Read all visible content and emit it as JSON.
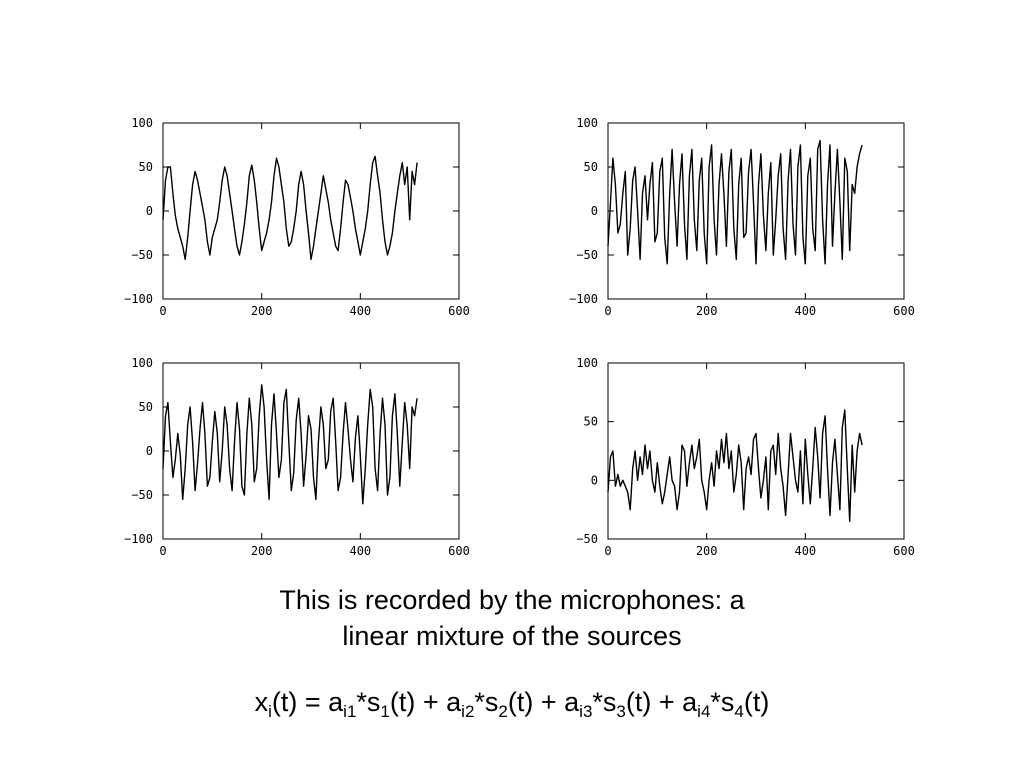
{
  "caption": {
    "line1": "This is recorded by the microphones: a",
    "line2": "linear mixture of the sources"
  },
  "equation": [
    {
      "t": "x"
    },
    {
      "s": "i"
    },
    {
      "t": "(t) = a"
    },
    {
      "s": "i1"
    },
    {
      "t": "*s"
    },
    {
      "s": "1"
    },
    {
      "t": "(t) + a"
    },
    {
      "s": "i2"
    },
    {
      "t": "*s"
    },
    {
      "s": "2"
    },
    {
      "t": "(t) + a"
    },
    {
      "s": "i3"
    },
    {
      "t": "*s"
    },
    {
      "s": "3"
    },
    {
      "t": "(t) + a"
    },
    {
      "s": "i4"
    },
    {
      "t": "*s"
    },
    {
      "s": "4"
    },
    {
      "t": "(t)"
    }
  ],
  "chart_data": [
    {
      "type": "line",
      "xlim": [
        0,
        600
      ],
      "ylim": [
        -100,
        100
      ],
      "xticks": [
        0,
        200,
        400,
        600
      ],
      "xtick_labels": [
        "0",
        "200",
        "400",
        "600"
      ],
      "yticks": [
        100,
        50,
        0,
        -50,
        -100
      ],
      "ytick_labels": [
        "100",
        "50",
        "0",
        "−50",
        "−100"
      ],
      "grid": false,
      "series": [
        {
          "x": [
            0,
            5,
            10,
            15,
            20,
            25,
            30,
            35,
            40,
            45,
            50,
            55,
            60,
            65,
            70,
            75,
            80,
            85,
            90,
            95,
            100,
            105,
            110,
            115,
            120,
            125,
            130,
            135,
            140,
            145,
            150,
            155,
            160,
            165,
            170,
            175,
            180,
            185,
            190,
            195,
            200,
            205,
            210,
            215,
            220,
            225,
            230,
            235,
            240,
            245,
            250,
            255,
            260,
            265,
            270,
            275,
            280,
            285,
            290,
            295,
            300,
            305,
            310,
            315,
            320,
            325,
            330,
            335,
            340,
            345,
            350,
            355,
            360,
            365,
            370,
            375,
            380,
            385,
            390,
            395,
            400,
            405,
            410,
            415,
            420,
            425,
            430,
            435,
            440,
            445,
            450,
            455,
            460,
            465,
            470,
            475,
            480,
            485,
            490,
            495,
            500,
            505,
            510,
            515
          ],
          "y": [
            -10,
            35,
            50,
            50,
            20,
            -5,
            -20,
            -30,
            -40,
            -55,
            -30,
            0,
            30,
            45,
            35,
            20,
            5,
            -10,
            -35,
            -50,
            -30,
            -20,
            -10,
            10,
            35,
            50,
            40,
            20,
            0,
            -20,
            -40,
            -50,
            -35,
            -15,
            10,
            40,
            52,
            35,
            10,
            -20,
            -45,
            -35,
            -25,
            -10,
            10,
            40,
            60,
            50,
            30,
            10,
            -20,
            -40,
            -35,
            -20,
            0,
            30,
            45,
            30,
            0,
            -25,
            -55,
            -40,
            -20,
            0,
            20,
            40,
            25,
            10,
            -10,
            -25,
            -40,
            -45,
            -20,
            10,
            35,
            30,
            15,
            0,
            -20,
            -35,
            -50,
            -35,
            -20,
            0,
            30,
            55,
            62,
            40,
            20,
            -10,
            -35,
            -50,
            -40,
            -25,
            0,
            20,
            40,
            55,
            30,
            50,
            -10,
            45,
            30,
            55
          ]
        }
      ]
    },
    {
      "type": "line",
      "xlim": [
        0,
        600
      ],
      "ylim": [
        -100,
        100
      ],
      "xticks": [
        0,
        200,
        400,
        600
      ],
      "xtick_labels": [
        "0",
        "200",
        "400",
        "600"
      ],
      "yticks": [
        100,
        50,
        0,
        -50,
        -100
      ],
      "ytick_labels": [
        "100",
        "50",
        "0",
        "−50",
        "−100"
      ],
      "grid": false,
      "series": [
        {
          "x": [
            0,
            5,
            10,
            15,
            20,
            25,
            30,
            35,
            40,
            45,
            50,
            55,
            60,
            65,
            70,
            75,
            80,
            85,
            90,
            95,
            100,
            105,
            110,
            115,
            120,
            125,
            130,
            135,
            140,
            145,
            150,
            155,
            160,
            165,
            170,
            175,
            180,
            185,
            190,
            195,
            200,
            205,
            210,
            215,
            220,
            225,
            230,
            235,
            240,
            245,
            250,
            255,
            260,
            265,
            270,
            275,
            280,
            285,
            290,
            295,
            300,
            305,
            310,
            315,
            320,
            325,
            330,
            335,
            340,
            345,
            350,
            355,
            360,
            365,
            370,
            375,
            380,
            385,
            390,
            395,
            400,
            405,
            410,
            415,
            420,
            425,
            430,
            435,
            440,
            445,
            450,
            455,
            460,
            465,
            470,
            475,
            480,
            485,
            490,
            495,
            500,
            505,
            510,
            515
          ],
          "y": [
            -40,
            10,
            60,
            30,
            -25,
            -15,
            20,
            45,
            -50,
            -20,
            35,
            50,
            0,
            -55,
            20,
            40,
            -10,
            30,
            55,
            -35,
            -25,
            45,
            60,
            -30,
            -60,
            20,
            70,
            10,
            -40,
            30,
            65,
            -15,
            -55,
            40,
            70,
            -10,
            -45,
            35,
            60,
            -25,
            -60,
            50,
            75,
            -10,
            -50,
            30,
            65,
            20,
            -40,
            45,
            70,
            -20,
            -55,
            30,
            60,
            -30,
            -25,
            45,
            70,
            10,
            -60,
            30,
            65,
            -5,
            -45,
            20,
            55,
            -50,
            -10,
            40,
            65,
            -20,
            -55,
            35,
            70,
            -15,
            -50,
            50,
            75,
            -30,
            -60,
            40,
            60,
            -20,
            -45,
            70,
            80,
            -10,
            -60,
            30,
            75,
            -40,
            20,
            70,
            10,
            -55,
            60,
            45,
            -45,
            30,
            20,
            50,
            65,
            75
          ]
        }
      ]
    },
    {
      "type": "line",
      "xlim": [
        0,
        600
      ],
      "ylim": [
        -100,
        100
      ],
      "xticks": [
        0,
        200,
        400,
        600
      ],
      "xtick_labels": [
        "0",
        "200",
        "400",
        "600"
      ],
      "yticks": [
        100,
        50,
        0,
        -50,
        -100
      ],
      "ytick_labels": [
        "100",
        "50",
        "0",
        "−50",
        "−100"
      ],
      "grid": false,
      "series": [
        {
          "x": [
            0,
            5,
            10,
            15,
            20,
            25,
            30,
            35,
            40,
            45,
            50,
            55,
            60,
            65,
            70,
            75,
            80,
            85,
            90,
            95,
            100,
            105,
            110,
            115,
            120,
            125,
            130,
            135,
            140,
            145,
            150,
            155,
            160,
            165,
            170,
            175,
            180,
            185,
            190,
            195,
            200,
            205,
            210,
            215,
            220,
            225,
            230,
            235,
            240,
            245,
            250,
            255,
            260,
            265,
            270,
            275,
            280,
            285,
            290,
            295,
            300,
            305,
            310,
            315,
            320,
            325,
            330,
            335,
            340,
            345,
            350,
            355,
            360,
            365,
            370,
            375,
            380,
            385,
            390,
            395,
            400,
            405,
            410,
            415,
            420,
            425,
            430,
            435,
            440,
            445,
            450,
            455,
            460,
            465,
            470,
            475,
            480,
            485,
            490,
            495,
            500,
            505,
            510,
            515
          ],
          "y": [
            -20,
            40,
            55,
            10,
            -30,
            -10,
            20,
            -5,
            -55,
            -20,
            30,
            50,
            10,
            -45,
            -15,
            25,
            55,
            20,
            -40,
            -30,
            10,
            45,
            20,
            -35,
            0,
            50,
            30,
            -20,
            -45,
            10,
            55,
            25,
            -40,
            -50,
            20,
            60,
            30,
            -35,
            -20,
            40,
            75,
            50,
            -10,
            -55,
            30,
            65,
            20,
            -30,
            -10,
            55,
            70,
            10,
            -45,
            -25,
            35,
            60,
            20,
            -40,
            -5,
            40,
            25,
            -30,
            -55,
            10,
            50,
            30,
            -20,
            -10,
            45,
            60,
            10,
            -45,
            -30,
            20,
            55,
            25,
            -10,
            -35,
            15,
            40,
            -5,
            -60,
            -20,
            30,
            70,
            50,
            -20,
            -45,
            20,
            60,
            30,
            -50,
            -30,
            40,
            65,
            20,
            -40,
            10,
            55,
            30,
            -20,
            50,
            40,
            60
          ]
        }
      ]
    },
    {
      "type": "line",
      "xlim": [
        0,
        600
      ],
      "ylim": [
        -50,
        100
      ],
      "xticks": [
        0,
        200,
        400,
        600
      ],
      "xtick_labels": [
        "0",
        "200",
        "400",
        "600"
      ],
      "yticks": [
        100,
        50,
        0,
        -50
      ],
      "ytick_labels": [
        "100",
        "50",
        "0",
        "−50"
      ],
      "grid": false,
      "series": [
        {
          "x": [
            0,
            5,
            10,
            15,
            20,
            25,
            30,
            35,
            40,
            45,
            50,
            55,
            60,
            65,
            70,
            75,
            80,
            85,
            90,
            95,
            100,
            105,
            110,
            115,
            120,
            125,
            130,
            135,
            140,
            145,
            150,
            155,
            160,
            165,
            170,
            175,
            180,
            185,
            190,
            195,
            200,
            205,
            210,
            215,
            220,
            225,
            230,
            235,
            240,
            245,
            250,
            255,
            260,
            265,
            270,
            275,
            280,
            285,
            290,
            295,
            300,
            305,
            310,
            315,
            320,
            325,
            330,
            335,
            340,
            345,
            350,
            355,
            360,
            365,
            370,
            375,
            380,
            385,
            390,
            395,
            400,
            405,
            410,
            415,
            420,
            425,
            430,
            435,
            440,
            445,
            450,
            455,
            460,
            465,
            470,
            475,
            480,
            485,
            490,
            495,
            500,
            505,
            510,
            515
          ],
          "y": [
            -10,
            20,
            25,
            -5,
            5,
            -5,
            0,
            -5,
            -10,
            -25,
            10,
            25,
            0,
            20,
            5,
            30,
            10,
            25,
            0,
            -10,
            15,
            -5,
            -20,
            -10,
            5,
            20,
            0,
            -5,
            -25,
            -10,
            30,
            25,
            -5,
            15,
            30,
            10,
            20,
            35,
            0,
            -10,
            -25,
            0,
            15,
            -5,
            25,
            10,
            35,
            15,
            40,
            10,
            25,
            -10,
            5,
            30,
            15,
            -25,
            10,
            20,
            5,
            35,
            40,
            10,
            -15,
            0,
            20,
            -25,
            25,
            30,
            5,
            40,
            10,
            -5,
            -30,
            5,
            40,
            20,
            0,
            -10,
            25,
            -20,
            35,
            5,
            -20,
            10,
            45,
            20,
            -15,
            40,
            55,
            10,
            -30,
            15,
            35,
            5,
            -25,
            45,
            60,
            10,
            -35,
            30,
            -10,
            25,
            40,
            30
          ]
        }
      ]
    }
  ]
}
